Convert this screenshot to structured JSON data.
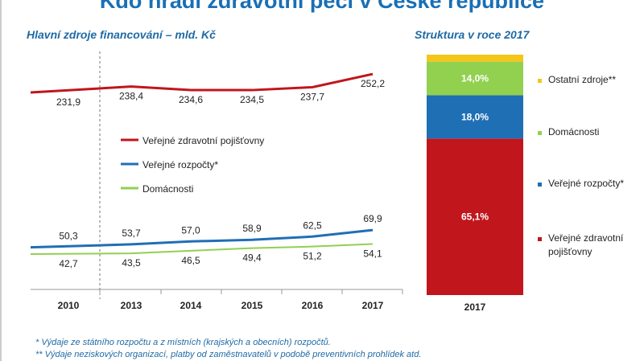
{
  "title": "Kdo hradí zdravotní péči v České republice",
  "footnotes": [
    "* Výdaje ze státního rozpočtu a z místních (krajských a obecních) rozpočtů.",
    "** Výdaje neziskových organizací, platby od zaměstnavatelů v podobě preventivních prohlídek atd."
  ],
  "chart_data": [
    {
      "type": "line",
      "title": "Hlavní zdroje financování – mld. Kč",
      "categories": [
        "2010",
        "2013",
        "2014",
        "2015",
        "2016",
        "2017"
      ],
      "series": [
        {
          "name": "Veřejné zdravotní pojišťovny",
          "color": "#c0161c",
          "values": [
            231.9,
            238.4,
            234.6,
            234.5,
            237.7,
            252.2
          ]
        },
        {
          "name": "Veřejné rozpočty*",
          "color": "#1f6fb5",
          "values": [
            50.3,
            53.7,
            57.0,
            58.9,
            62.5,
            69.9
          ]
        },
        {
          "name": "Domácnosti",
          "color": "#92d050",
          "values": [
            42.7,
            43.5,
            46.5,
            49.4,
            51.2,
            54.1
          ]
        }
      ],
      "legend": "center",
      "grid": false,
      "axis_break": true
    },
    {
      "type": "bar",
      "stacked": true,
      "title": "Struktura v roce 2017",
      "categories": [
        "2017"
      ],
      "series": [
        {
          "name": "Veřejné zdravotní pojišťovny",
          "color": "#c0161c",
          "value": 65.1,
          "label": "65,1%"
        },
        {
          "name": "Veřejné rozpočty*",
          "color": "#1f6fb5",
          "value": 18.0,
          "label": "18,0%"
        },
        {
          "name": "Domácnosti",
          "color": "#92d050",
          "value": 14.0,
          "label": "14,0%"
        },
        {
          "name": "Ostatní zdroje**",
          "color": "#f5c518",
          "value": 2.9,
          "label": ""
        }
      ]
    }
  ]
}
